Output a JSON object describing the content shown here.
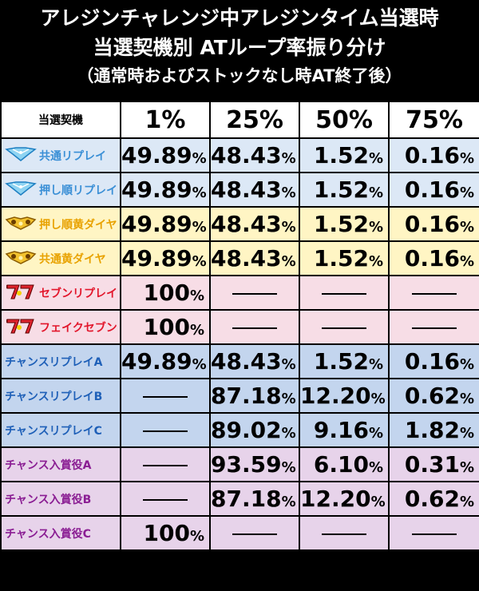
{
  "header": {
    "line1": "アレジンチャレンジ中アレジンタイム当選時",
    "line2": "当選契機別 ATループ率振り分け",
    "line3": "（通常時およびストックなし時AT終了後）"
  },
  "table": {
    "corner_label": "当選契機",
    "columns": [
      "1%",
      "25%",
      "50%",
      "75%"
    ],
    "rows": [
      {
        "name": "共通リプレイ",
        "icon": "blue-gem-icon",
        "style": "blue",
        "values": [
          [
            "49.89",
            "%"
          ],
          [
            "48.43",
            "%"
          ],
          [
            "1.52",
            "%"
          ],
          [
            "0.16",
            "%"
          ]
        ]
      },
      {
        "name": "押し順リプレイ",
        "icon": "blue-gem-icon",
        "style": "blue",
        "values": [
          [
            "49.89",
            "%"
          ],
          [
            "48.43",
            "%"
          ],
          [
            "1.52",
            "%"
          ],
          [
            "0.16",
            "%"
          ]
        ]
      },
      {
        "name": "押し順黄ダイヤ",
        "icon": "yellow-gem-icon",
        "style": "yellow",
        "values": [
          [
            "49.89",
            "%"
          ],
          [
            "48.43",
            "%"
          ],
          [
            "1.52",
            "%"
          ],
          [
            "0.16",
            "%"
          ]
        ]
      },
      {
        "name": "共通黄ダイヤ",
        "icon": "yellow-gem-icon",
        "style": "yellow",
        "values": [
          [
            "49.89",
            "%"
          ],
          [
            "48.43",
            "%"
          ],
          [
            "1.52",
            "%"
          ],
          [
            "0.16",
            "%"
          ]
        ]
      },
      {
        "name": "セブンリプレイ",
        "icon": "red-seven-icon",
        "style": "pink",
        "values": [
          [
            "100",
            "%"
          ],
          null,
          null,
          null
        ]
      },
      {
        "name": "フェイクセブン",
        "icon": "red-seven-icon",
        "style": "pink2",
        "values": [
          [
            "100",
            "%"
          ],
          null,
          null,
          null
        ]
      },
      {
        "name": "チャンスリプレイA",
        "icon": "",
        "style": "steel",
        "values": [
          [
            "49.89",
            "%"
          ],
          [
            "48.43",
            "%"
          ],
          [
            "1.52",
            "%"
          ],
          [
            "0.16",
            "%"
          ]
        ]
      },
      {
        "name": "チャンスリプレイB",
        "icon": "",
        "style": "steel",
        "values": [
          null,
          [
            "87.18",
            "%"
          ],
          [
            "12.20",
            "%"
          ],
          [
            "0.62",
            "%"
          ]
        ]
      },
      {
        "name": "チャンスリプレイC",
        "icon": "",
        "style": "steel",
        "values": [
          null,
          [
            "89.02",
            "%"
          ],
          [
            "9.16",
            "%"
          ],
          [
            "1.82",
            "%"
          ]
        ]
      },
      {
        "name": "チャンス入賞役A",
        "icon": "",
        "style": "purple",
        "values": [
          null,
          [
            "93.59",
            "%"
          ],
          [
            "6.10",
            "%"
          ],
          [
            "0.31",
            "%"
          ]
        ]
      },
      {
        "name": "チャンス入賞役B",
        "icon": "",
        "style": "purple",
        "values": [
          null,
          [
            "87.18",
            "%"
          ],
          [
            "12.20",
            "%"
          ],
          [
            "0.62",
            "%"
          ]
        ]
      },
      {
        "name": "チャンス入賞役C",
        "icon": "",
        "style": "purple",
        "values": [
          [
            "100",
            "%"
          ],
          null,
          null,
          null
        ]
      }
    ]
  }
}
